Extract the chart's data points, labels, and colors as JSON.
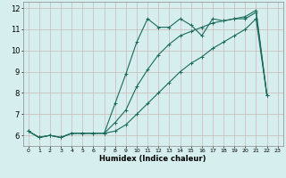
{
  "xlabel": "Humidex (Indice chaleur)",
  "ylabel": "",
  "background_color": "#d6eeee",
  "line_color": "#1a6b5a",
  "grid_color": "#c8b8b8",
  "xlim": [
    -0.5,
    23.5
  ],
  "ylim": [
    5.5,
    12.3
  ],
  "xticks": [
    0,
    1,
    2,
    3,
    4,
    5,
    6,
    7,
    8,
    9,
    10,
    11,
    12,
    13,
    14,
    15,
    16,
    17,
    18,
    19,
    20,
    21,
    22,
    23
  ],
  "yticks": [
    6,
    7,
    8,
    9,
    10,
    11,
    12
  ],
  "series": [
    {
      "x": [
        0,
        1,
        2,
        3,
        4,
        5,
        6,
        7,
        8,
        9,
        10,
        11,
        12,
        13,
        14,
        15,
        16,
        17,
        18,
        19,
        20,
        21,
        22
      ],
      "y": [
        6.2,
        5.9,
        6.0,
        5.9,
        6.1,
        6.1,
        6.1,
        6.1,
        7.5,
        8.9,
        10.4,
        11.5,
        11.1,
        11.1,
        11.5,
        11.2,
        10.7,
        11.5,
        11.4,
        11.5,
        11.5,
        11.8,
        7.9
      ]
    },
    {
      "x": [
        0,
        1,
        2,
        3,
        4,
        5,
        6,
        7,
        8,
        9,
        10,
        11,
        12,
        13,
        14,
        15,
        16,
        17,
        18,
        19,
        20,
        21,
        22
      ],
      "y": [
        6.2,
        5.9,
        6.0,
        5.9,
        6.1,
        6.1,
        6.1,
        6.1,
        6.6,
        7.2,
        8.3,
        9.1,
        9.8,
        10.3,
        10.7,
        10.9,
        11.1,
        11.3,
        11.4,
        11.5,
        11.6,
        11.9,
        7.9
      ]
    },
    {
      "x": [
        0,
        1,
        2,
        3,
        4,
        5,
        6,
        7,
        8,
        9,
        10,
        11,
        12,
        13,
        14,
        15,
        16,
        17,
        18,
        19,
        20,
        21,
        22
      ],
      "y": [
        6.2,
        5.9,
        6.0,
        5.9,
        6.1,
        6.1,
        6.1,
        6.1,
        6.2,
        6.5,
        7.0,
        7.5,
        8.0,
        8.5,
        9.0,
        9.4,
        9.7,
        10.1,
        10.4,
        10.7,
        11.0,
        11.5,
        7.9
      ]
    }
  ]
}
